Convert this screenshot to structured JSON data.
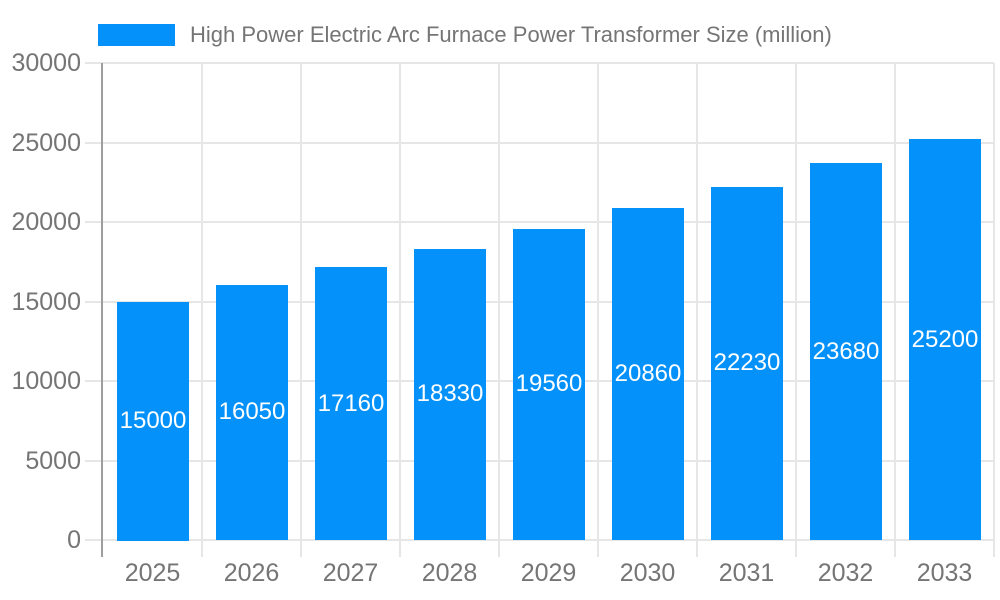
{
  "chart_data": {
    "type": "bar",
    "title": "High Power Electric Arc Furnace Power Transformer Size (million)",
    "categories": [
      "2025",
      "2026",
      "2027",
      "2028",
      "2029",
      "2030",
      "2031",
      "2032",
      "2033"
    ],
    "values": [
      15000,
      16050,
      17160,
      18330,
      19560,
      20860,
      22230,
      23680,
      25200
    ],
    "xlabel": "",
    "ylabel": "",
    "ylim": [
      0,
      30000
    ],
    "yticks": [
      0,
      5000,
      10000,
      15000,
      20000,
      25000,
      30000
    ],
    "grid": true,
    "legend_position": "top-left",
    "colors": {
      "bar": "#0591FA",
      "bar_label_text": "#FFFFFF",
      "axis_text": "#757575",
      "gridline": "#E6E6E6",
      "axis_line": "#9E9E9E",
      "background": "#FFFFFF"
    }
  }
}
